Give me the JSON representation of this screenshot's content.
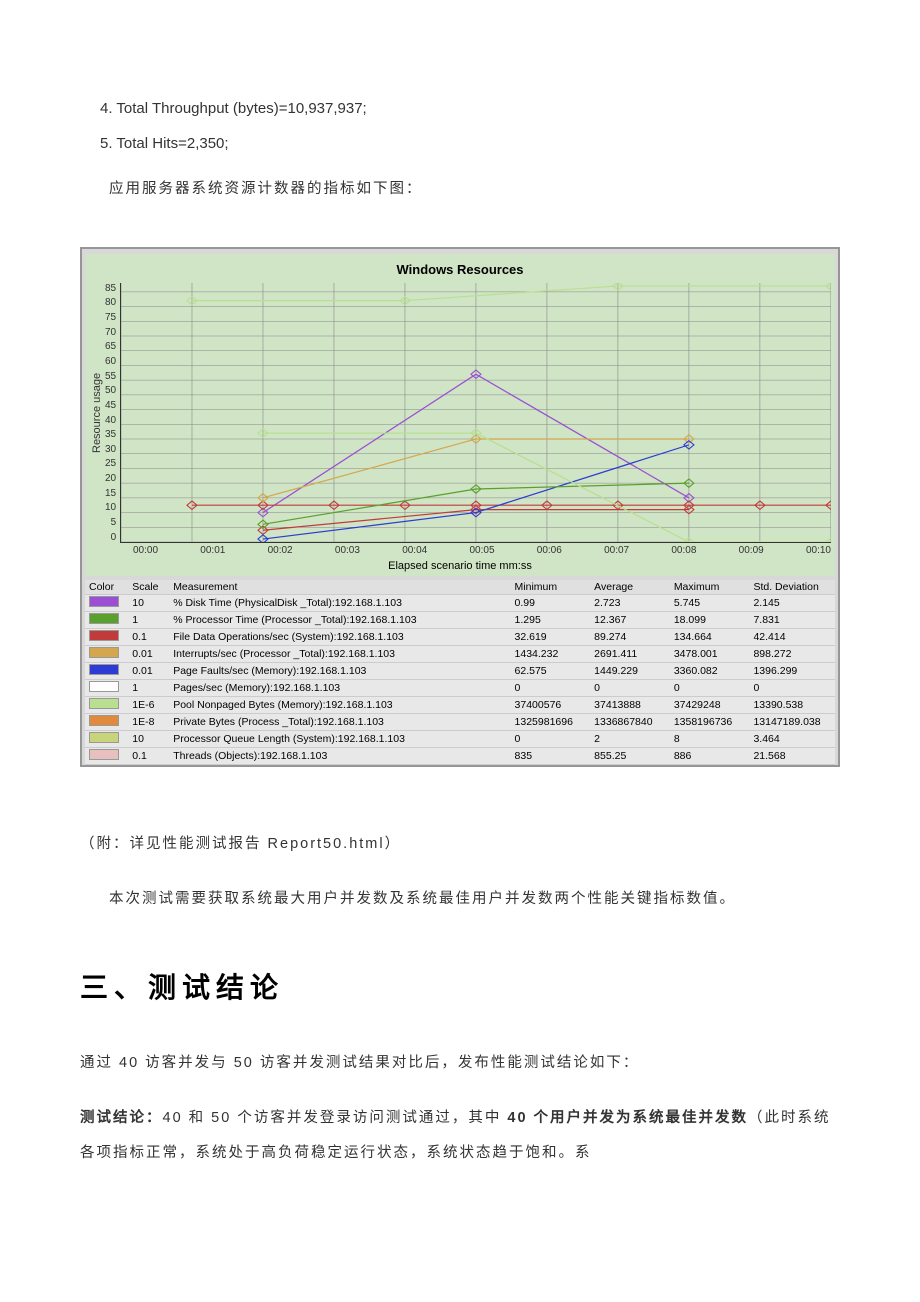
{
  "list": {
    "item4": "4. Total Throughput (bytes)=10,937,937;",
    "item5": "5. Total Hits=2,350;"
  },
  "para1": "应用服务器系统资源计数器的指标如下图：",
  "chart": {
    "title": "Windows Resources",
    "ylabel": "Resource usage",
    "xlabel": "Elapsed scenario time mm:ss",
    "ymin": 0,
    "ymax": 88,
    "yticks": [
      "85",
      "80",
      "75",
      "70",
      "65",
      "60",
      "55",
      "50",
      "45",
      "40",
      "35",
      "30",
      "25",
      "20",
      "15",
      "10",
      "5",
      "0"
    ],
    "xticks": [
      "00:00",
      "00:01",
      "00:02",
      "00:03",
      "00:04",
      "00:05",
      "00:06",
      "00:07",
      "00:08",
      "00:09",
      "00:10"
    ],
    "plot_bg": "#d0e4c6",
    "grid_color": "#888888",
    "series": [
      {
        "color": "#9a4fd4",
        "pts": [
          [
            2,
            10
          ],
          [
            5,
            57
          ],
          [
            8,
            15
          ]
        ]
      },
      {
        "color": "#c23b3b",
        "pts": [
          [
            1,
            12.5
          ],
          [
            2,
            12.5
          ],
          [
            3,
            12.5
          ],
          [
            4,
            12.5
          ],
          [
            5,
            12.5
          ],
          [
            6,
            12.5
          ],
          [
            7,
            12.5
          ],
          [
            8,
            12.5
          ],
          [
            9,
            12.5
          ],
          [
            10,
            12.5
          ]
        ]
      },
      {
        "color": "#c23b3b",
        "pts": [
          [
            2,
            4
          ],
          [
            5,
            11
          ],
          [
            8,
            11
          ]
        ]
      },
      {
        "color": "#d4a74f",
        "pts": [
          [
            2,
            15
          ],
          [
            5,
            35
          ],
          [
            8,
            35
          ]
        ]
      },
      {
        "color": "#2b3bd4",
        "pts": [
          [
            2,
            1
          ],
          [
            5,
            10
          ],
          [
            8,
            33
          ]
        ]
      },
      {
        "color": "#5aa02c",
        "pts": [
          [
            2,
            6
          ],
          [
            5,
            18
          ],
          [
            8,
            20
          ]
        ]
      },
      {
        "color": "#b8e090",
        "pts": [
          [
            1,
            82
          ],
          [
            4,
            82
          ],
          [
            7,
            87
          ],
          [
            10,
            87
          ]
        ]
      },
      {
        "color": "#b8e090",
        "pts": [
          [
            2,
            37
          ],
          [
            5,
            37
          ],
          [
            8,
            0
          ],
          [
            10,
            0
          ]
        ]
      }
    ]
  },
  "legend": {
    "headers": {
      "color": "Color",
      "scale": "Scale",
      "meas": "Measurement",
      "min": "Minimum",
      "avg": "Average",
      "max": "Maximum",
      "std": "Std. Deviation"
    },
    "rows": [
      {
        "color": "#9a4fd4",
        "scale": "10",
        "meas": "% Disk Time (PhysicalDisk _Total):192.168.1.103",
        "min": "0.99",
        "avg": "2.723",
        "max": "5.745",
        "std": "2.145"
      },
      {
        "color": "#5aa02c",
        "scale": "1",
        "meas": "% Processor Time (Processor _Total):192.168.1.103",
        "min": "1.295",
        "avg": "12.367",
        "max": "18.099",
        "std": "7.831"
      },
      {
        "color": "#c23b3b",
        "scale": "0.1",
        "meas": "File Data Operations/sec (System):192.168.1.103",
        "min": "32.619",
        "avg": "89.274",
        "max": "134.664",
        "std": "42.414"
      },
      {
        "color": "#d4a74f",
        "scale": "0.01",
        "meas": "Interrupts/sec (Processor _Total):192.168.1.103",
        "min": "1434.232",
        "avg": "2691.411",
        "max": "3478.001",
        "std": "898.272"
      },
      {
        "color": "#2b3bd4",
        "scale": "0.01",
        "meas": "Page Faults/sec (Memory):192.168.1.103",
        "min": "62.575",
        "avg": "1449.229",
        "max": "3360.082",
        "std": "1396.299"
      },
      {
        "color": "#ffffff",
        "scale": "1",
        "meas": "Pages/sec (Memory):192.168.1.103",
        "min": "0",
        "avg": "0",
        "max": "0",
        "std": "0"
      },
      {
        "color": "#b8e090",
        "scale": "1E-6",
        "meas": "Pool Nonpaged Bytes (Memory):192.168.1.103",
        "min": "37400576",
        "avg": "37413888",
        "max": "37429248",
        "std": "13390.538"
      },
      {
        "color": "#e08a3b",
        "scale": "1E-8",
        "meas": "Private Bytes (Process _Total):192.168.1.103",
        "min": "1325981696",
        "avg": "1336867840",
        "max": "1358196736",
        "std": "13147189.038"
      },
      {
        "color": "#c8d47a",
        "scale": "10",
        "meas": "Processor Queue Length (System):192.168.1.103",
        "min": "0",
        "avg": "2",
        "max": "8",
        "std": "3.464"
      },
      {
        "color": "#e8c0c0",
        "scale": "0.1",
        "meas": "Threads (Objects):192.168.1.103",
        "min": "835",
        "avg": "855.25",
        "max": "886",
        "std": "21.568"
      }
    ]
  },
  "para2": "（附：详见性能测试报告 Report50.html）",
  "para3": "本次测试需要获取系统最大用户并发数及系统最佳用户并发数两个性能关键指标数值。",
  "heading": "三、测试结论",
  "para4": "通过 40 访客并发与 50 访客并发测试结果对比后，发布性能测试结论如下：",
  "para5a": "测试结论：",
  "para5b": "40 和 50 个访客并发登录访问测试通过，其中 ",
  "para5c": "40 个用户并发为系统最佳并发数",
  "para5d": "（此时系统各项指标正常，系统处于高负荷稳定运行状态，系统状态趋于饱和。系"
}
